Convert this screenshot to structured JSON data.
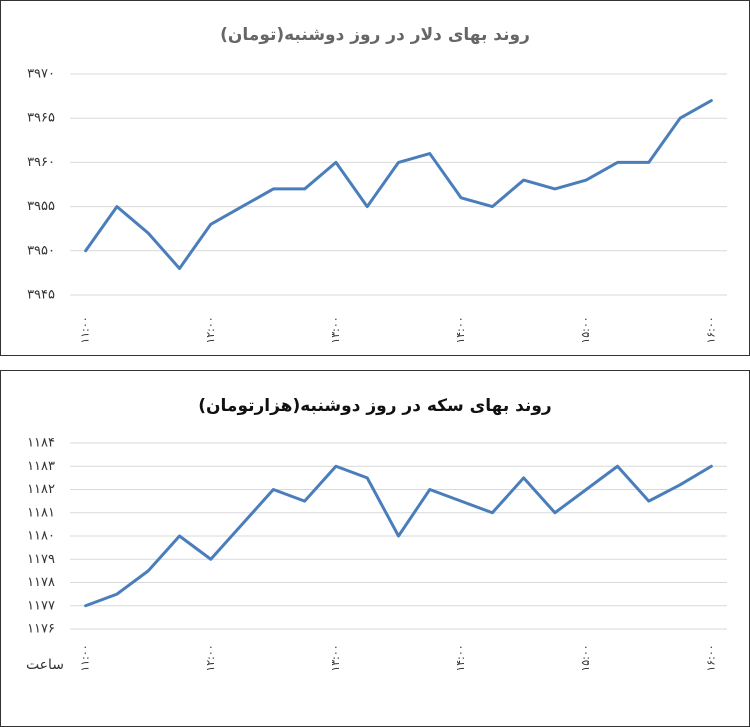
{
  "chart_data": [
    {
      "type": "line",
      "title": "روند بهای دلار در روز دوشنبه(تومان)",
      "categories": [
        "۱۱:۰۰",
        null,
        null,
        null,
        "۱۲:۰۰",
        null,
        null,
        null,
        "۱۳:۰۰",
        null,
        null,
        null,
        "۱۴:۰۰",
        null,
        null,
        null,
        "۱۵:۰۰",
        null,
        null,
        null,
        "۱۶:۰۰"
      ],
      "series": [
        {
          "color": "#4a7ebb",
          "values": [
            3950,
            3955,
            3952,
            3948,
            3953,
            3955,
            3957,
            3957,
            3960,
            3955,
            3960,
            3961,
            3956,
            3955,
            3958,
            3957,
            3958,
            3960,
            3960,
            3965,
            3967
          ]
        }
      ],
      "ylim": [
        3945,
        3970
      ],
      "yticks": [
        {
          "value": 3945,
          "label": "۳۹۴۵"
        },
        {
          "value": 3950,
          "label": "۳۹۵۰"
        },
        {
          "value": 3955,
          "label": "۳۹۵۵"
        },
        {
          "value": 3960,
          "label": "۳۹۶۰"
        },
        {
          "value": 3965,
          "label": "۳۹۶۵"
        },
        {
          "value": 3970,
          "label": "۳۹۷۰"
        }
      ],
      "grid": true
    },
    {
      "type": "line",
      "title": "روند بهای سکه در روز دوشنبه(هزارتومان)",
      "x_label": "ساعت",
      "categories": [
        "۱۱:۰۰",
        null,
        null,
        null,
        "۱۲:۰۰",
        null,
        null,
        null,
        "۱۳:۰۰",
        null,
        null,
        null,
        "۱۴:۰۰",
        null,
        null,
        null,
        "۱۵:۰۰",
        null,
        null,
        null,
        "۱۶:۰۰"
      ],
      "series": [
        {
          "color": "#4a7ebb",
          "values": [
            1177,
            1177.5,
            1178.5,
            1180,
            1179,
            1180.5,
            1182,
            1181.5,
            1183,
            1182.5,
            1180,
            1182,
            1181.5,
            1181,
            1182.5,
            1181,
            1182,
            1183,
            1181.5,
            1182.2,
            1183
          ]
        }
      ],
      "ylim": [
        1176,
        1184
      ],
      "yticks": [
        {
          "value": 1176,
          "label": "۱۱۷۶"
        },
        {
          "value": 1177,
          "label": "۱۱۷۷"
        },
        {
          "value": 1178,
          "label": "۱۱۷۸"
        },
        {
          "value": 1179,
          "label": "۱۱۷۹"
        },
        {
          "value": 1180,
          "label": "۱۱۸۰"
        },
        {
          "value": 1181,
          "label": "۱۱۸۱"
        },
        {
          "value": 1182,
          "label": "۱۱۸۲"
        },
        {
          "value": 1183,
          "label": "۱۱۸۳"
        },
        {
          "value": 1184,
          "label": "۱۱۸۴"
        }
      ],
      "grid": true
    }
  ]
}
